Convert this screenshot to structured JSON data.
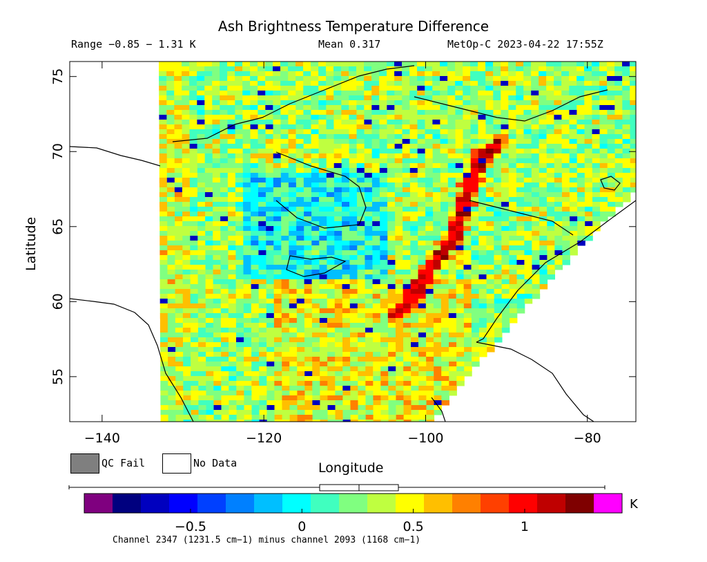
{
  "header": {
    "title": "Ash Brightness Temperature Difference",
    "range": "Range −0.85 − 1.31 K",
    "mean": "Mean 0.317",
    "satellite_time": "MetOp-C 2023-04-22 17:55Z"
  },
  "chart_data": {
    "type": "heatmap",
    "title": "Ash Brightness Temperature Difference",
    "xlabel": "Longitude",
    "ylabel": "Latitude",
    "xlim": [
      -144,
      -74
    ],
    "ylim": [
      52,
      76
    ],
    "x_ticks": [
      -140,
      -120,
      -100,
      -80
    ],
    "y_ticks": [
      55,
      60,
      65,
      70,
      75
    ],
    "x_tick_labels": [
      "−140",
      "−120",
      "−100",
      "−80"
    ],
    "y_tick_labels": [
      "55",
      "60",
      "65",
      "70",
      "75"
    ],
    "value_range_K": [
      -0.85,
      1.31
    ],
    "mean_K": 0.317,
    "colorbar": {
      "ticks": [
        -0.5,
        0,
        0.5,
        1
      ],
      "tick_labels": [
        "−0.5",
        "0",
        "0.5",
        "1"
      ],
      "unit": "K",
      "colors": [
        "#7f007f",
        "#00007f",
        "#0000bf",
        "#0000ff",
        "#0040ff",
        "#0080ff",
        "#00bfff",
        "#00ffff",
        "#40ffbf",
        "#80ff80",
        "#bfff40",
        "#ffff00",
        "#ffbf00",
        "#ff8000",
        "#ff4000",
        "#ff0000",
        "#bf0000",
        "#7f0000",
        "#ff00ff"
      ],
      "box_plot": {
        "min": -0.85,
        "q1": 0.16,
        "median": 0.317,
        "q3": 0.48,
        "max": 1.31
      }
    },
    "legend": [
      {
        "label": "QC Fail",
        "color": "#7f7f7f"
      },
      {
        "label": "No Data",
        "color": "#ffffff"
      }
    ],
    "caption": "Channel 2347 (1231.5 cm−1) minus channel 2093 (1168 cm−1)",
    "features": [
      {
        "name": "ash plume",
        "path": [
          [
            -104,
            59.3
          ],
          [
            -100,
            62.2
          ],
          [
            -97,
            64.5
          ],
          [
            -95,
            67.8
          ],
          [
            -93.5,
            69.8
          ],
          [
            -91.5,
            70.6
          ]
        ],
        "value_K": 1.1
      }
    ]
  }
}
